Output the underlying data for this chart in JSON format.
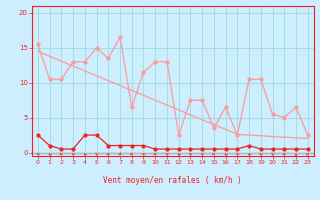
{
  "xlabel": "Vent moyen/en rafales ( km/h )",
  "xlim": [
    -0.5,
    23.5
  ],
  "ylim": [
    -0.5,
    21
  ],
  "bg_color": "#cceeff",
  "grid_color": "#99dddd",
  "line_color_dark": "#ee2222",
  "line_color_light": "#ff9999",
  "x": [
    0,
    1,
    2,
    3,
    4,
    5,
    6,
    7,
    8,
    9,
    10,
    11,
    12,
    13,
    14,
    15,
    16,
    17,
    18,
    19,
    20,
    21,
    22,
    23
  ],
  "y_avg": [
    2.5,
    1.0,
    0.5,
    0.5,
    2.5,
    2.5,
    1.0,
    1.0,
    1.0,
    1.0,
    0.5,
    0.5,
    0.5,
    0.5,
    0.5,
    0.5,
    0.5,
    0.5,
    1.0,
    0.5,
    0.5,
    0.5,
    0.5,
    0.5
  ],
  "y_gust": [
    15.5,
    10.5,
    10.5,
    13.0,
    13.0,
    15.0,
    13.5,
    16.5,
    6.5,
    11.5,
    13.0,
    13.0,
    2.5,
    7.5,
    7.5,
    3.5,
    6.5,
    2.5,
    10.5,
    10.5,
    5.5,
    5.0,
    6.5,
    2.5
  ],
  "y_trend": [
    14.5,
    13.8,
    13.1,
    12.4,
    11.7,
    11.0,
    10.3,
    9.6,
    8.9,
    8.2,
    7.5,
    6.8,
    6.1,
    5.4,
    4.7,
    4.0,
    3.3,
    2.6,
    2.5,
    2.4,
    2.3,
    2.2,
    2.1,
    2.0
  ],
  "yticks": [
    0,
    5,
    10,
    15,
    20
  ],
  "xtick_labels": [
    "0",
    "1",
    "2",
    "3",
    "4",
    "5",
    "6",
    "7",
    "8",
    "9",
    "10",
    "11",
    "12",
    "13",
    "14",
    "15",
    "16",
    "17",
    "18",
    "19",
    "20",
    "21",
    "22",
    "23"
  ]
}
